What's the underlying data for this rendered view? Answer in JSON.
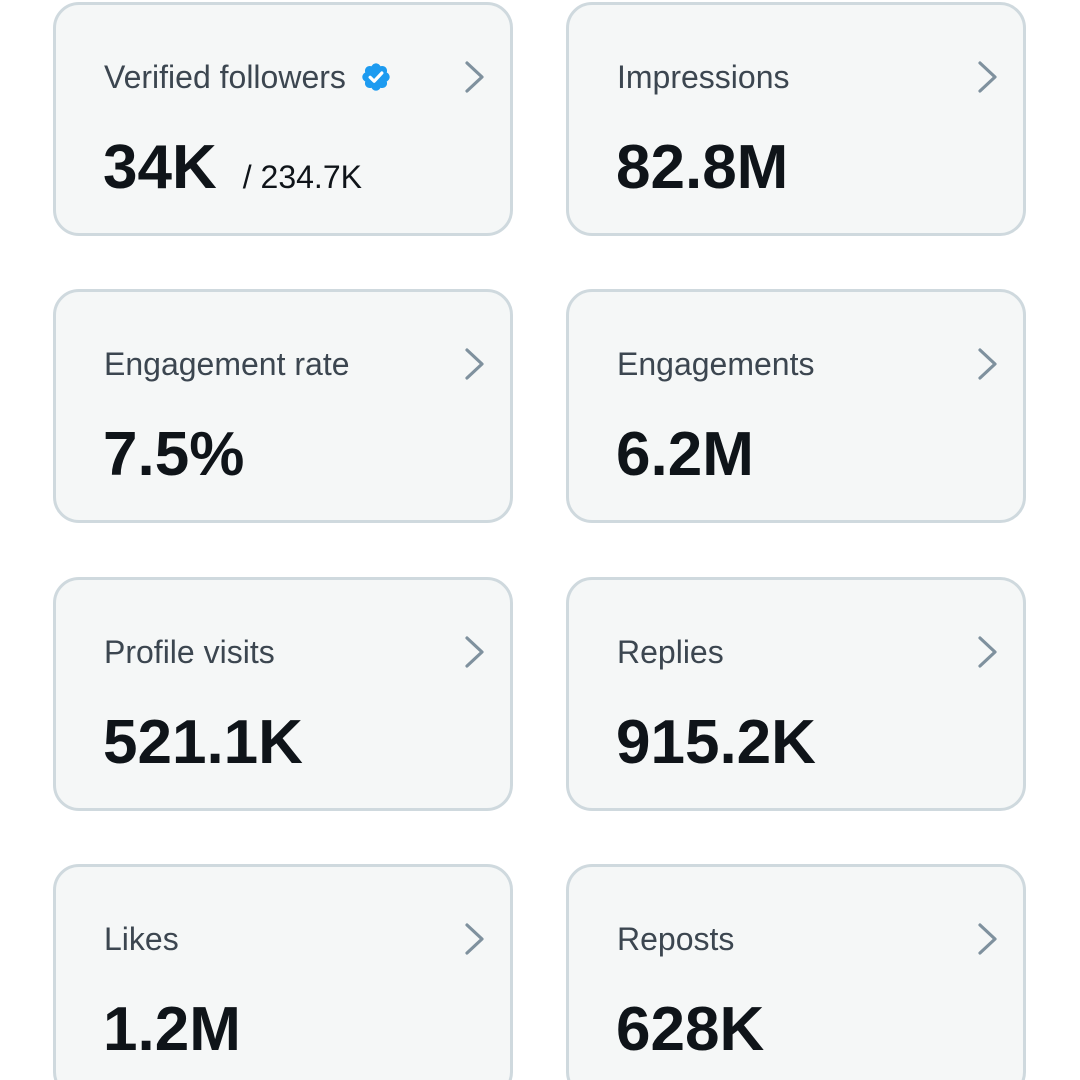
{
  "colors": {
    "card_background": "#f5f7f7",
    "card_border": "#cfd9de",
    "label_text": "#3c4650",
    "value_text": "#0f1419",
    "chevron": "#7f919e",
    "verified_badge": "#1d9bf0"
  },
  "icons": {
    "verified": "verified-badge-icon",
    "arrow": "chevron-right-icon"
  },
  "cards": [
    {
      "label": "Verified followers",
      "value": "34K",
      "subvalue": "/ 234.7K"
    },
    {
      "label": "Impressions",
      "value": "82.8M"
    },
    {
      "label": "Engagement rate",
      "value": "7.5%"
    },
    {
      "label": "Engagements",
      "value": "6.2M"
    },
    {
      "label": "Profile visits",
      "value": "521.1K"
    },
    {
      "label": "Replies",
      "value": "915.2K"
    },
    {
      "label": "Likes",
      "value": "1.2M"
    },
    {
      "label": "Reposts",
      "value": "628K"
    }
  ]
}
